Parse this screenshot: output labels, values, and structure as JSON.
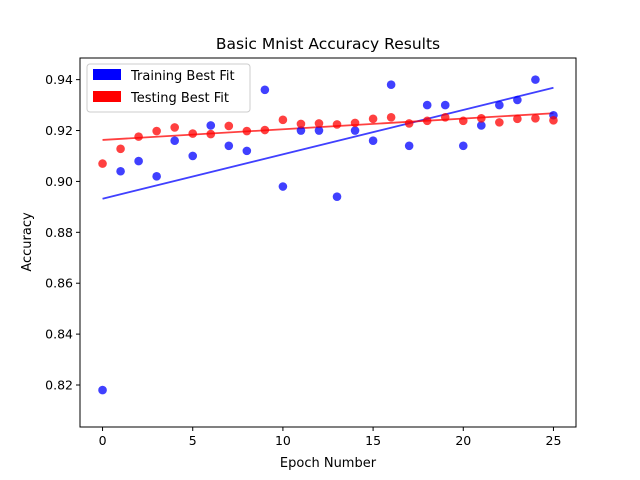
{
  "chart_data": {
    "type": "scatter",
    "title": "Basic Mnist Accuracy Results",
    "xlabel": "Epoch Number",
    "ylabel": "Accuracy",
    "xlim": [
      -1.25,
      26.25
    ],
    "ylim": [
      0.8035,
      0.9485
    ],
    "xticks": [
      0,
      5,
      10,
      15,
      20,
      25
    ],
    "yticks": [
      0.82,
      0.84,
      0.86,
      0.88,
      0.9,
      0.92,
      0.94
    ],
    "ytick_labels": [
      "0.82",
      "0.84",
      "0.86",
      "0.88",
      "0.90",
      "0.92",
      "0.94"
    ],
    "grid": false,
    "legend_position": "upper-left",
    "series": [
      {
        "name": "Training Best Fit",
        "color": "#0000ff",
        "x": [
          0,
          1,
          2,
          3,
          4,
          5,
          6,
          7,
          8,
          9,
          10,
          11,
          12,
          13,
          14,
          15,
          16,
          17,
          18,
          19,
          20,
          21,
          22,
          23,
          24,
          25
        ],
        "y": [
          0.818,
          0.904,
          0.908,
          0.902,
          0.916,
          0.91,
          0.922,
          0.914,
          0.912,
          0.936,
          0.898,
          0.92,
          0.92,
          0.894,
          0.92,
          0.916,
          0.938,
          0.914,
          0.93,
          0.93,
          0.914,
          0.922,
          0.93,
          0.932,
          0.94,
          0.926
        ],
        "fit": [
          [
            0,
            0.8932
          ],
          [
            25,
            0.9368
          ]
        ]
      },
      {
        "name": "Testing Best Fit",
        "color": "#ff0000",
        "x": [
          0,
          1,
          2,
          3,
          4,
          5,
          6,
          7,
          8,
          9,
          10,
          11,
          12,
          13,
          14,
          15,
          16,
          17,
          18,
          19,
          20,
          21,
          22,
          23,
          24,
          25
        ],
        "y": [
          0.907,
          0.9128,
          0.9176,
          0.9198,
          0.9212,
          0.9188,
          0.9186,
          0.9218,
          0.9198,
          0.9202,
          0.9242,
          0.9226,
          0.9228,
          0.9224,
          0.923,
          0.9246,
          0.9252,
          0.9228,
          0.9238,
          0.9252,
          0.9238,
          0.9248,
          0.9232,
          0.9246,
          0.9248,
          0.924
        ],
        "fit": [
          [
            0,
            0.9163
          ],
          [
            25,
            0.9268
          ]
        ]
      }
    ]
  }
}
